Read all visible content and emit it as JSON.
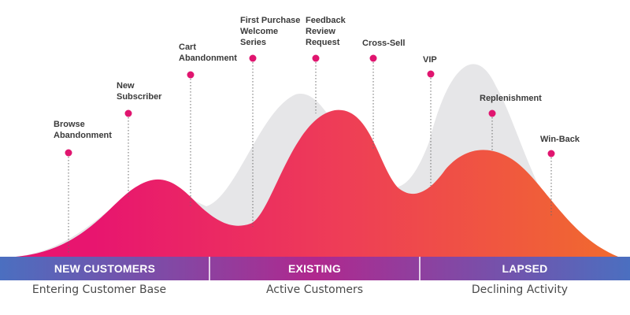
{
  "colors": {
    "curve_start": "#e8156f",
    "curve_mid": "#ee3e56",
    "curve_end": "#f16a2e",
    "ghost_curve": "#e6e6e8",
    "dot": "#e0156f",
    "band_blue": "#4b6fc0",
    "band_magenta": "#b0288e"
  },
  "touchpoints": [
    {
      "label": "Browse\nAbandonment"
    },
    {
      "label": "New\nSubscriber"
    },
    {
      "label": "Cart\nAbandonment"
    },
    {
      "label": "First Purchase\nWelcome\nSeries"
    },
    {
      "label": "Feedback\nReview\nRequest"
    },
    {
      "label": "Cross-Sell"
    },
    {
      "label": "VIP"
    },
    {
      "label": "Replenishment"
    },
    {
      "label": "Win-Back"
    }
  ],
  "stages": [
    {
      "label": "NEW CUSTOMERS",
      "caption": "Entering Customer Base"
    },
    {
      "label": "EXISTING",
      "caption": "Active Customers"
    },
    {
      "label": "LAPSED",
      "caption": "Declining Activity"
    }
  ]
}
